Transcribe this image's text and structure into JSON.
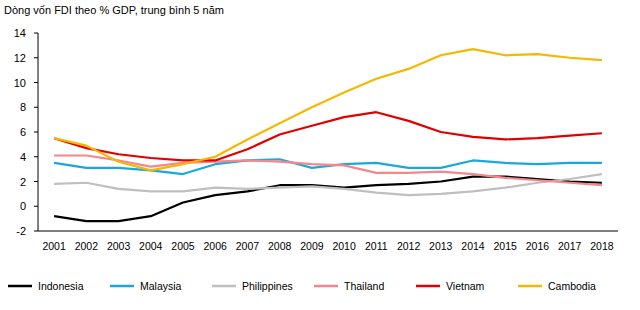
{
  "chart_data": {
    "type": "line",
    "title": "Dòng vốn FDI theo % GDP, trung bình 5 năm",
    "categories": [
      "2001",
      "2002",
      "2003",
      "2004",
      "2005",
      "2006",
      "2007",
      "2008",
      "2009",
      "2010",
      "2011",
      "2012",
      "2013",
      "2014",
      "2015",
      "2016",
      "2017",
      "2018"
    ],
    "series": [
      {
        "name": "Indonesia",
        "color": "#000000",
        "values": [
          -0.8,
          -1.2,
          -1.2,
          -0.8,
          0.3,
          0.9,
          1.2,
          1.7,
          1.7,
          1.5,
          1.7,
          1.8,
          2.0,
          2.4,
          2.4,
          2.2,
          2.0,
          1.9
        ]
      },
      {
        "name": "Malaysia",
        "color": "#1aa7e0",
        "values": [
          3.5,
          3.1,
          3.1,
          2.9,
          2.6,
          3.4,
          3.7,
          3.8,
          3.1,
          3.4,
          3.5,
          3.1,
          3.1,
          3.7,
          3.5,
          3.4,
          3.5,
          3.5
        ]
      },
      {
        "name": "Philippines",
        "color": "#bfbfbf",
        "values": [
          1.8,
          1.9,
          1.4,
          1.2,
          1.2,
          1.5,
          1.4,
          1.5,
          1.6,
          1.4,
          1.1,
          0.9,
          1.0,
          1.2,
          1.5,
          1.9,
          2.2,
          2.6
        ]
      },
      {
        "name": "Thailand",
        "color": "#f4878c",
        "values": [
          4.1,
          4.1,
          3.7,
          3.2,
          3.5,
          3.6,
          3.7,
          3.6,
          3.4,
          3.3,
          2.7,
          2.7,
          2.8,
          2.6,
          2.3,
          2.1,
          1.9,
          1.7
        ]
      },
      {
        "name": "Vietnam",
        "color": "#e00000",
        "values": [
          5.5,
          4.7,
          4.2,
          3.9,
          3.7,
          3.7,
          4.6,
          5.8,
          6.5,
          7.2,
          7.6,
          6.9,
          6.0,
          5.6,
          5.4,
          5.5,
          5.7,
          5.9
        ]
      },
      {
        "name": "Cambodia",
        "color": "#f5b800",
        "values": [
          5.5,
          4.9,
          3.6,
          2.9,
          3.4,
          4.0,
          5.4,
          6.7,
          8.0,
          9.2,
          10.3,
          11.1,
          12.2,
          12.7,
          12.2,
          12.3,
          12.0,
          11.8
        ]
      }
    ],
    "ylim": [
      -2,
      14
    ],
    "yticks": [
      -2,
      0,
      2,
      4,
      6,
      8,
      10,
      12,
      14
    ],
    "grid": false,
    "legend": "bottom"
  }
}
